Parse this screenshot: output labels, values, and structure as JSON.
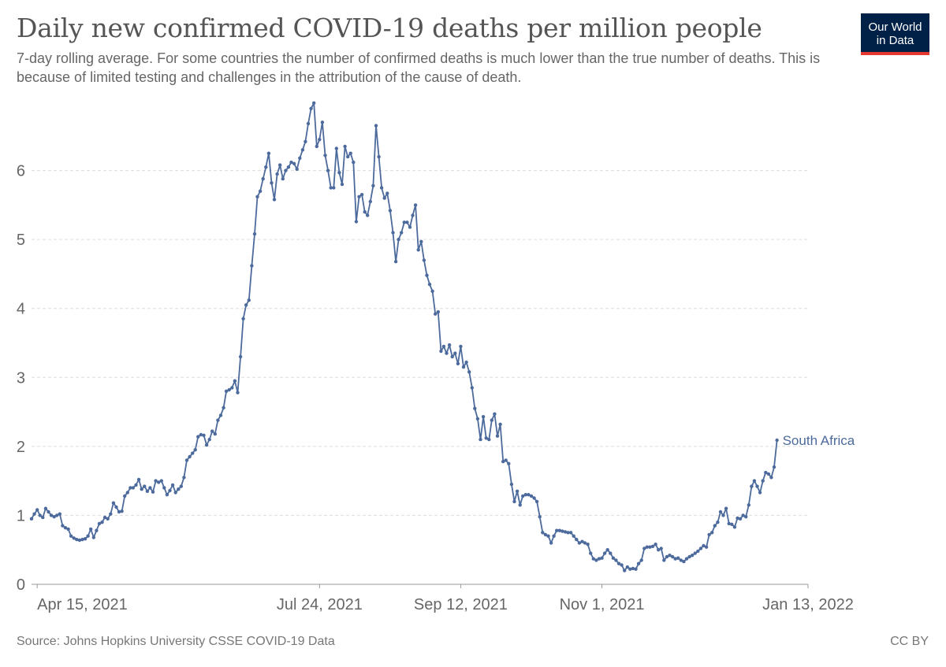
{
  "header": {
    "title": "Daily new confirmed COVID-19 deaths per million people",
    "subtitle": "7-day rolling average. For some countries the number of confirmed deaths is much lower than the true number of deaths. This is because of limited testing and challenges in the attribution of the cause of death."
  },
  "logo": {
    "line1": "Our World",
    "line2": "in Data"
  },
  "footer": {
    "source": "Source: Johns Hopkins University CSSE COVID-19 Data",
    "license": "CC BY"
  },
  "colors": {
    "series": "#4c6a9c",
    "grid": "#dddddd",
    "axis": "#999999"
  },
  "chart_data": {
    "type": "line",
    "title": "Daily new confirmed COVID-19 deaths per million people",
    "ylabel": "",
    "xlabel": "",
    "ylim": [
      0,
      7
    ],
    "yticks": [
      0,
      1,
      2,
      3,
      4,
      5,
      6
    ],
    "x_start": "2021-04-13",
    "x_end": "2022-01-13",
    "day_range": [
      0,
      275
    ],
    "xticks": [
      {
        "label": "Apr 15, 2021",
        "day": 2
      },
      {
        "label": "Jul 24, 2021",
        "day": 102
      },
      {
        "label": "Sep 12, 2021",
        "day": 152
      },
      {
        "label": "Nov 1, 2021",
        "day": 202
      },
      {
        "label": "Jan 13, 2022",
        "day": 275
      }
    ],
    "grid": true,
    "legend": "end-of-line label",
    "series": [
      {
        "name": "South Africa",
        "points": [
          [
            0,
            0.95
          ],
          [
            1,
            1.02
          ],
          [
            2,
            1.08
          ],
          [
            3,
            1.0
          ],
          [
            4,
            0.97
          ],
          [
            5,
            1.1
          ],
          [
            6,
            1.05
          ],
          [
            7,
            1.0
          ],
          [
            8,
            0.98
          ],
          [
            9,
            1.0
          ],
          [
            10,
            1.02
          ],
          [
            11,
            0.85
          ],
          [
            12,
            0.82
          ],
          [
            13,
            0.8
          ],
          [
            14,
            0.7
          ],
          [
            15,
            0.67
          ],
          [
            16,
            0.65
          ],
          [
            17,
            0.64
          ],
          [
            18,
            0.65
          ],
          [
            19,
            0.66
          ],
          [
            20,
            0.7
          ],
          [
            21,
            0.8
          ],
          [
            22,
            0.68
          ],
          [
            23,
            0.78
          ],
          [
            24,
            0.88
          ],
          [
            25,
            0.9
          ],
          [
            26,
            0.97
          ],
          [
            27,
            0.95
          ],
          [
            28,
            1.02
          ],
          [
            29,
            1.18
          ],
          [
            30,
            1.12
          ],
          [
            31,
            1.05
          ],
          [
            32,
            1.06
          ],
          [
            33,
            1.28
          ],
          [
            34,
            1.33
          ],
          [
            35,
            1.4
          ],
          [
            36,
            1.4
          ],
          [
            37,
            1.44
          ],
          [
            38,
            1.52
          ],
          [
            39,
            1.38
          ],
          [
            40,
            1.42
          ],
          [
            41,
            1.35
          ],
          [
            42,
            1.4
          ],
          [
            43,
            1.34
          ],
          [
            44,
            1.5
          ],
          [
            45,
            1.48
          ],
          [
            46,
            1.5
          ],
          [
            47,
            1.4
          ],
          [
            48,
            1.3
          ],
          [
            49,
            1.36
          ],
          [
            50,
            1.44
          ],
          [
            51,
            1.33
          ],
          [
            52,
            1.38
          ],
          [
            53,
            1.42
          ],
          [
            54,
            1.55
          ],
          [
            55,
            1.8
          ],
          [
            56,
            1.85
          ],
          [
            57,
            1.9
          ],
          [
            58,
            1.95
          ],
          [
            59,
            2.14
          ],
          [
            60,
            2.17
          ],
          [
            61,
            2.16
          ],
          [
            62,
            2.02
          ],
          [
            63,
            2.1
          ],
          [
            64,
            2.22
          ],
          [
            65,
            2.18
          ],
          [
            66,
            2.38
          ],
          [
            67,
            2.45
          ],
          [
            68,
            2.56
          ],
          [
            69,
            2.8
          ],
          [
            70,
            2.82
          ],
          [
            71,
            2.85
          ],
          [
            72,
            2.95
          ],
          [
            73,
            2.78
          ],
          [
            74,
            3.3
          ],
          [
            75,
            3.85
          ],
          [
            76,
            4.05
          ],
          [
            77,
            4.12
          ],
          [
            78,
            4.62
          ],
          [
            79,
            5.08
          ],
          [
            80,
            5.62
          ],
          [
            81,
            5.7
          ],
          [
            82,
            5.88
          ],
          [
            83,
            6.05
          ],
          [
            84,
            6.25
          ],
          [
            85,
            5.82
          ],
          [
            86,
            5.58
          ],
          [
            87,
            5.95
          ],
          [
            88,
            6.08
          ],
          [
            89,
            5.88
          ],
          [
            90,
            6.0
          ],
          [
            91,
            6.05
          ],
          [
            92,
            6.12
          ],
          [
            93,
            6.1
          ],
          [
            94,
            6.02
          ],
          [
            95,
            6.18
          ],
          [
            96,
            6.3
          ],
          [
            97,
            6.42
          ],
          [
            98,
            6.68
          ],
          [
            99,
            6.9
          ],
          [
            100,
            6.98
          ],
          [
            101,
            6.35
          ],
          [
            102,
            6.45
          ],
          [
            103,
            6.7
          ],
          [
            104,
            6.22
          ],
          [
            105,
            6.0
          ],
          [
            106,
            5.75
          ],
          [
            107,
            5.75
          ],
          [
            108,
            6.32
          ],
          [
            109,
            5.97
          ],
          [
            110,
            5.8
          ],
          [
            111,
            6.35
          ],
          [
            112,
            6.2
          ],
          [
            113,
            6.25
          ],
          [
            114,
            6.12
          ],
          [
            115,
            5.26
          ],
          [
            116,
            5.62
          ],
          [
            117,
            5.65
          ],
          [
            118,
            5.4
          ],
          [
            119,
            5.35
          ],
          [
            120,
            5.55
          ],
          [
            121,
            5.78
          ],
          [
            122,
            6.65
          ],
          [
            123,
            6.2
          ],
          [
            124,
            5.75
          ],
          [
            125,
            5.6
          ],
          [
            126,
            5.67
          ],
          [
            127,
            5.42
          ],
          [
            128,
            5.1
          ],
          [
            129,
            4.68
          ],
          [
            130,
            5.0
          ],
          [
            131,
            5.1
          ],
          [
            132,
            5.25
          ],
          [
            133,
            5.25
          ],
          [
            134,
            5.18
          ],
          [
            135,
            5.35
          ],
          [
            136,
            5.5
          ],
          [
            137,
            4.85
          ],
          [
            138,
            4.97
          ],
          [
            139,
            4.7
          ],
          [
            140,
            4.48
          ],
          [
            141,
            4.35
          ],
          [
            142,
            4.25
          ],
          [
            143,
            3.92
          ],
          [
            144,
            3.95
          ],
          [
            145,
            3.38
          ],
          [
            146,
            3.45
          ],
          [
            147,
            3.35
          ],
          [
            148,
            3.47
          ],
          [
            149,
            3.3
          ],
          [
            150,
            3.35
          ],
          [
            151,
            3.2
          ],
          [
            152,
            3.45
          ],
          [
            153,
            3.15
          ],
          [
            154,
            3.22
          ],
          [
            155,
            3.08
          ],
          [
            156,
            2.85
          ],
          [
            157,
            2.55
          ],
          [
            158,
            2.4
          ],
          [
            159,
            2.1
          ],
          [
            160,
            2.43
          ],
          [
            161,
            2.12
          ],
          [
            162,
            2.1
          ],
          [
            163,
            2.38
          ],
          [
            164,
            2.47
          ],
          [
            165,
            2.15
          ],
          [
            166,
            2.32
          ],
          [
            167,
            1.78
          ],
          [
            168,
            1.8
          ],
          [
            169,
            1.75
          ],
          [
            170,
            1.45
          ],
          [
            171,
            1.2
          ],
          [
            172,
            1.35
          ],
          [
            173,
            1.15
          ],
          [
            174,
            1.28
          ],
          [
            175,
            1.3
          ],
          [
            176,
            1.3
          ],
          [
            177,
            1.28
          ],
          [
            178,
            1.25
          ],
          [
            179,
            1.2
          ],
          [
            180,
            0.98
          ],
          [
            181,
            0.75
          ],
          [
            182,
            0.72
          ],
          [
            183,
            0.7
          ],
          [
            184,
            0.6
          ],
          [
            185,
            0.7
          ],
          [
            186,
            0.78
          ],
          [
            187,
            0.78
          ],
          [
            188,
            0.77
          ],
          [
            189,
            0.76
          ],
          [
            190,
            0.75
          ],
          [
            191,
            0.75
          ],
          [
            192,
            0.7
          ],
          [
            193,
            0.65
          ],
          [
            194,
            0.6
          ],
          [
            195,
            0.62
          ],
          [
            196,
            0.6
          ],
          [
            197,
            0.58
          ],
          [
            198,
            0.45
          ],
          [
            199,
            0.37
          ],
          [
            200,
            0.35
          ],
          [
            201,
            0.37
          ],
          [
            202,
            0.38
          ],
          [
            203,
            0.45
          ],
          [
            204,
            0.5
          ],
          [
            205,
            0.45
          ],
          [
            206,
            0.38
          ],
          [
            207,
            0.35
          ],
          [
            208,
            0.3
          ],
          [
            209,
            0.28
          ],
          [
            210,
            0.2
          ],
          [
            211,
            0.25
          ],
          [
            212,
            0.22
          ],
          [
            213,
            0.23
          ],
          [
            214,
            0.22
          ],
          [
            215,
            0.3
          ],
          [
            216,
            0.35
          ],
          [
            217,
            0.52
          ],
          [
            218,
            0.54
          ],
          [
            219,
            0.54
          ],
          [
            220,
            0.55
          ],
          [
            221,
            0.58
          ],
          [
            222,
            0.5
          ],
          [
            223,
            0.52
          ],
          [
            224,
            0.35
          ],
          [
            225,
            0.4
          ],
          [
            226,
            0.42
          ],
          [
            227,
            0.4
          ],
          [
            228,
            0.37
          ],
          [
            229,
            0.38
          ],
          [
            230,
            0.35
          ],
          [
            231,
            0.33
          ],
          [
            232,
            0.37
          ],
          [
            233,
            0.4
          ],
          [
            234,
            0.42
          ],
          [
            235,
            0.45
          ],
          [
            236,
            0.48
          ],
          [
            237,
            0.52
          ],
          [
            238,
            0.56
          ],
          [
            239,
            0.54
          ],
          [
            240,
            0.72
          ],
          [
            241,
            0.75
          ],
          [
            242,
            0.85
          ],
          [
            243,
            0.9
          ],
          [
            244,
            1.05
          ],
          [
            245,
            1.0
          ],
          [
            246,
            1.1
          ],
          [
            247,
            0.88
          ],
          [
            248,
            0.87
          ],
          [
            249,
            0.83
          ],
          [
            250,
            0.96
          ],
          [
            251,
            0.95
          ],
          [
            252,
            1.0
          ],
          [
            253,
            0.98
          ],
          [
            254,
            1.15
          ],
          [
            255,
            1.42
          ],
          [
            256,
            1.5
          ],
          [
            257,
            1.42
          ],
          [
            258,
            1.33
          ],
          [
            259,
            1.5
          ],
          [
            260,
            1.62
          ],
          [
            261,
            1.6
          ],
          [
            262,
            1.55
          ],
          [
            263,
            1.7
          ],
          [
            264,
            2.09
          ]
        ]
      }
    ]
  }
}
